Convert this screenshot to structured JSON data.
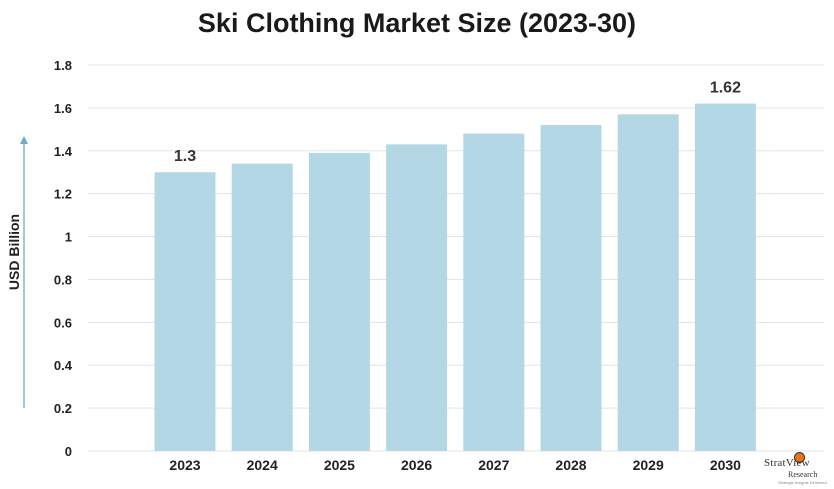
{
  "chart_data": {
    "type": "bar",
    "title": "Ski Clothing Market Size (2023-30)",
    "xlabel": "",
    "ylabel": "USD Billion",
    "categories": [
      "2023",
      "2024",
      "2025",
      "2026",
      "2027",
      "2028",
      "2029",
      "2030"
    ],
    "values": [
      1.3,
      1.34,
      1.39,
      1.43,
      1.48,
      1.52,
      1.57,
      1.62
    ],
    "data_labels": {
      "0": "1.3",
      "7": "1.62"
    },
    "ylim": [
      0,
      1.8
    ],
    "yticks": [
      "0",
      "0.2",
      "0.4",
      "0.6",
      "0.8",
      "1",
      "1.2",
      "1.4",
      "1.6",
      "1.8"
    ],
    "grid": true,
    "colors": {
      "bar": "#b4d7e5",
      "grid": "#e3e3e3",
      "axis_arrow": "#6aaec8",
      "text": "#222222"
    }
  },
  "logo": {
    "brand": "StratView",
    "sub": "Research",
    "tagline": "Strategic Insights Delivered"
  }
}
